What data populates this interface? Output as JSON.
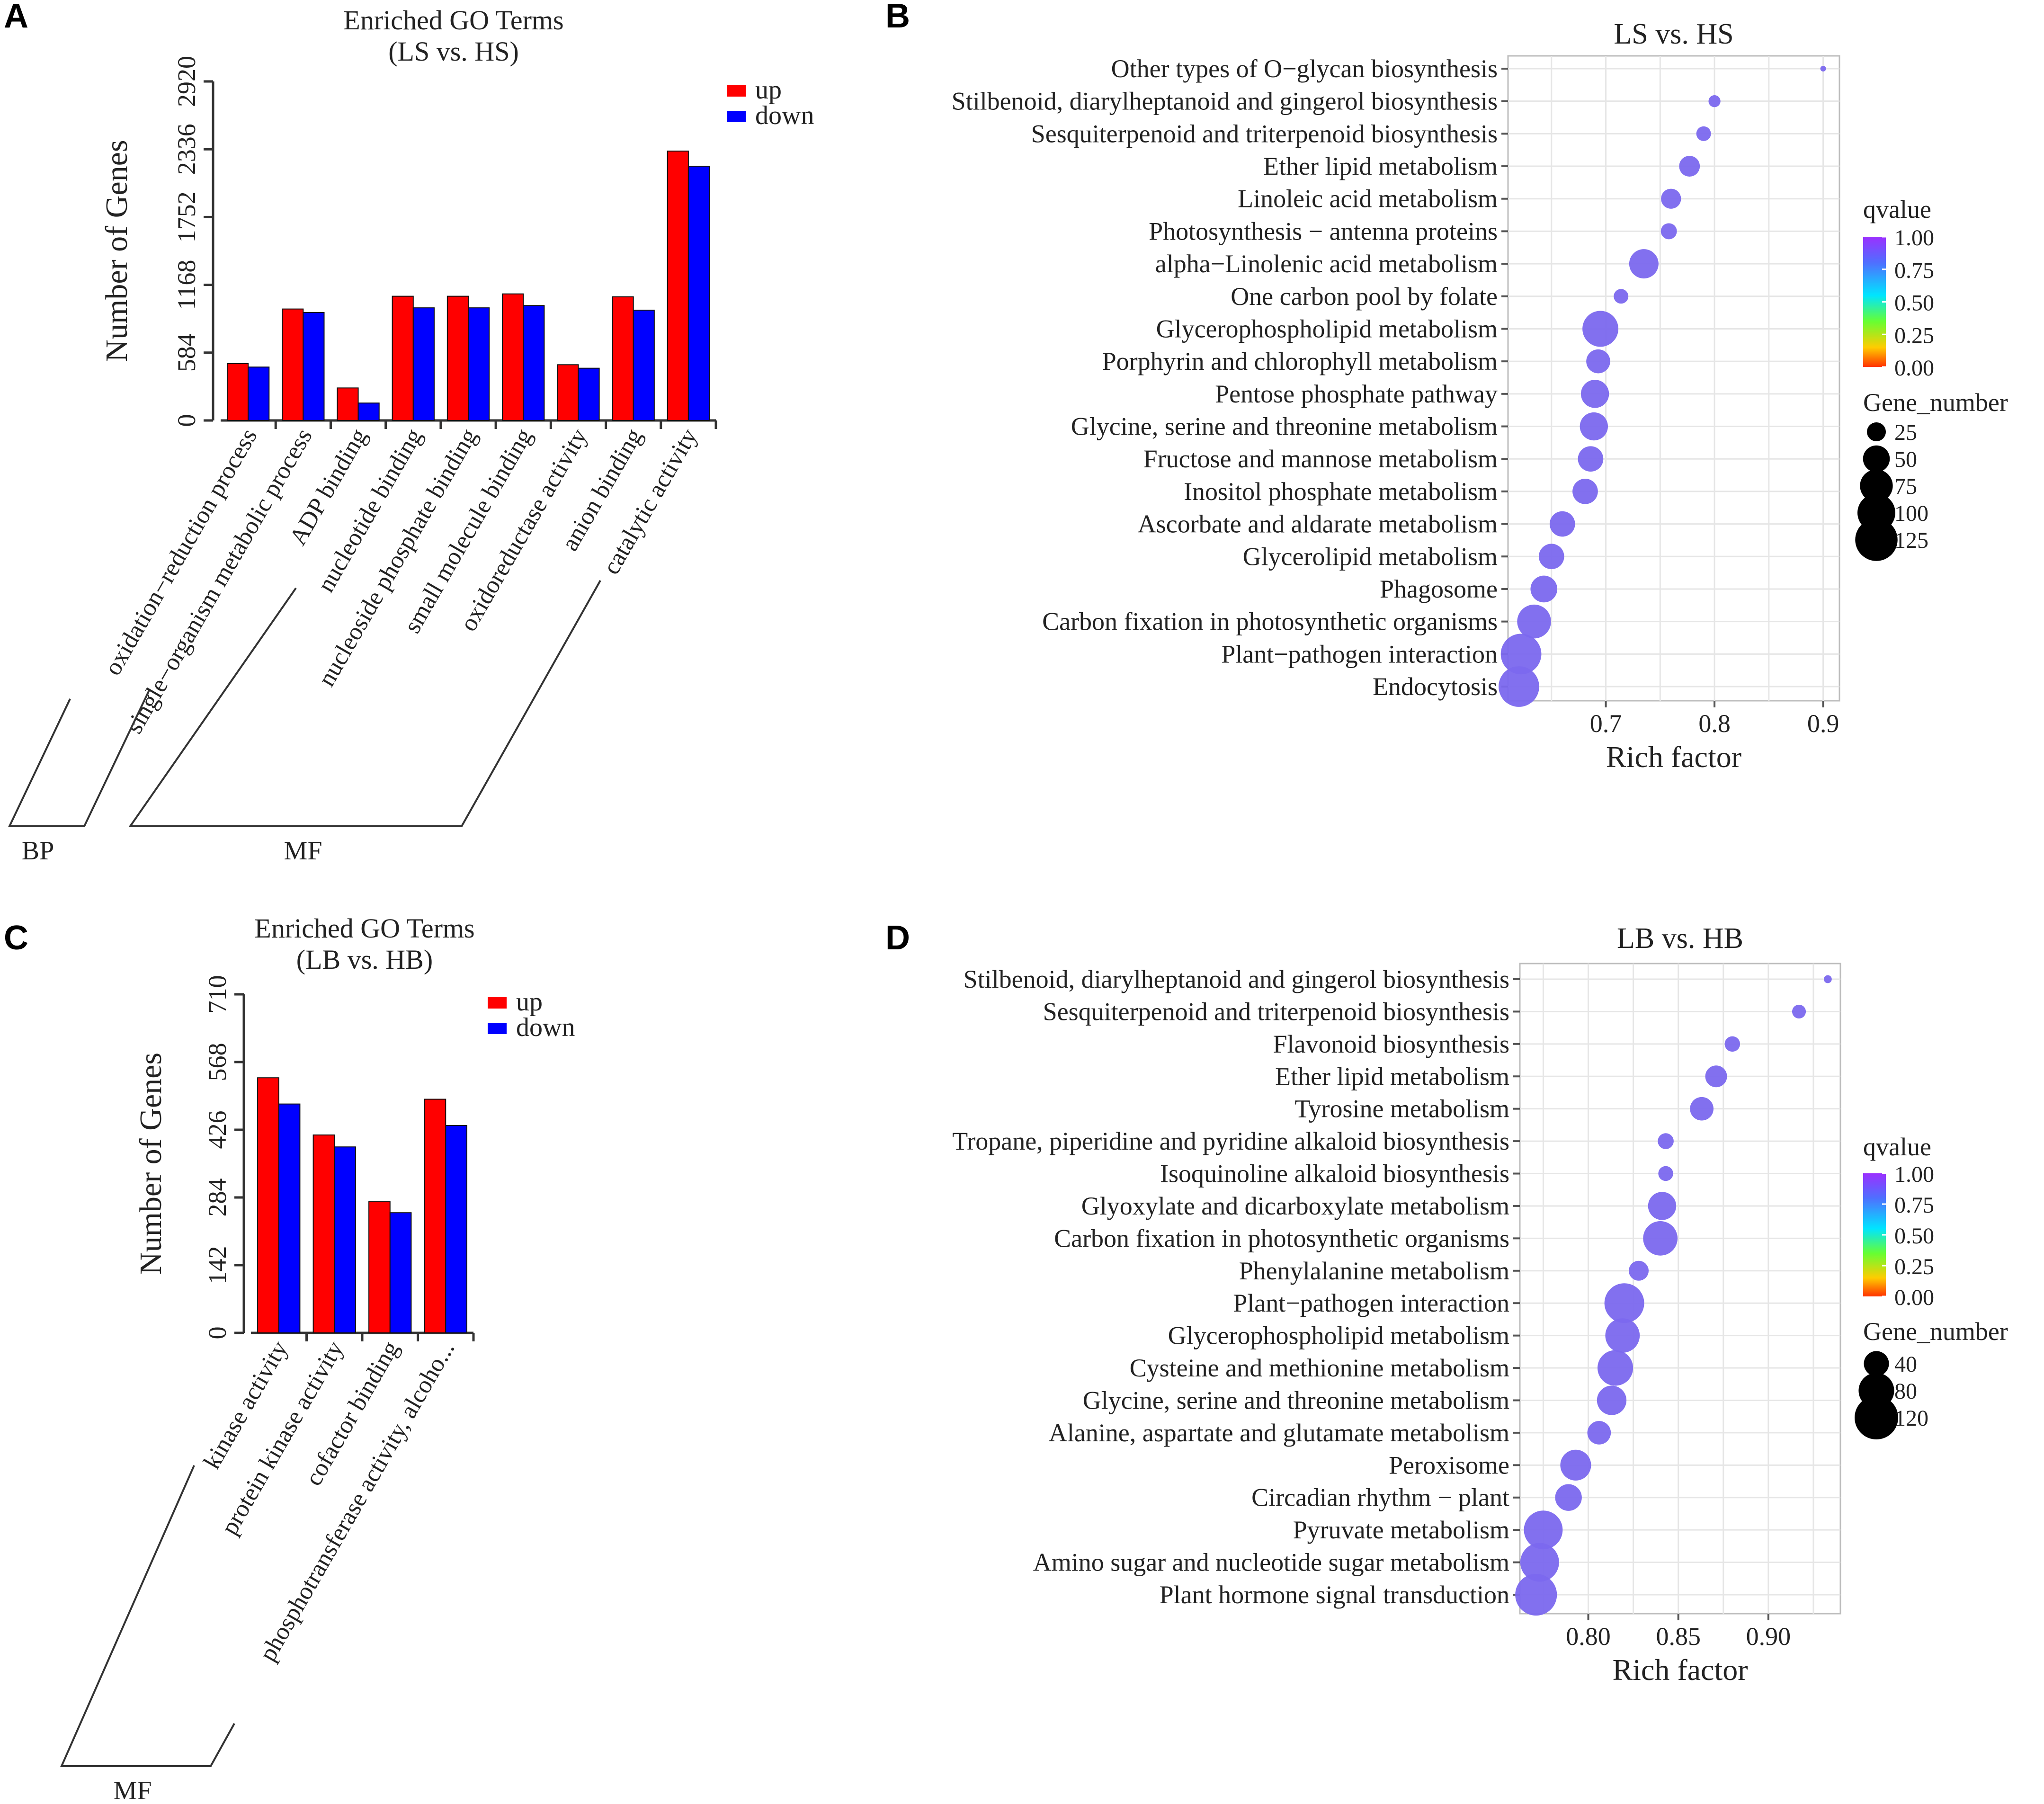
{
  "colors": {
    "up": "#ff0000",
    "down": "#0000ff",
    "axis": "#333333",
    "grid": "#e6e6e6",
    "dot": "#7b68ee",
    "qvalue_gradient": [
      "#9b30ff",
      "#4f6fff",
      "#00e5ff",
      "#66ff33",
      "#ffcc00",
      "#ff3300"
    ]
  },
  "chart_data": [
    {
      "panel": "A",
      "type": "bar",
      "title": "Enriched GO Terms",
      "subtitle": "(LS vs. HS)",
      "ylabel": "Number of Genes",
      "xlabel": "",
      "ylim": [
        0,
        2920
      ],
      "yticks": [
        "0",
        "584",
        "1168",
        "1752",
        "2336",
        "2920"
      ],
      "legend": [
        "up",
        "down"
      ],
      "categories": [
        "oxidation−reduction process",
        "single−organism metabolic process",
        "ADP binding",
        "nucleotide binding",
        "nucleoside phosphate binding",
        "small molecule binding",
        "oxidoreductase activity",
        "anion binding",
        "catalytic activity"
      ],
      "series": [
        {
          "name": "up",
          "values": [
            490,
            960,
            280,
            1070,
            1070,
            1090,
            480,
            1065,
            2320
          ]
        },
        {
          "name": "down",
          "values": [
            460,
            930,
            150,
            970,
            970,
            990,
            450,
            950,
            2190
          ]
        }
      ],
      "groups": [
        {
          "name": "BP",
          "range": [
            0,
            1
          ]
        },
        {
          "name": "MF",
          "range": [
            2,
            8
          ]
        }
      ]
    },
    {
      "panel": "B",
      "type": "scatter",
      "title": "LS vs. HS",
      "xlabel": "Rich factor",
      "ylabel": "",
      "xlim": [
        0.61,
        0.915
      ],
      "xticks": [
        "0.7",
        "0.8",
        "0.9"
      ],
      "color_legend_title": "qvalue",
      "color_ticks": [
        "1.00",
        "0.75",
        "0.50",
        "0.25",
        "0.00"
      ],
      "size_legend_title": "Gene_number",
      "size_ticks": [
        "25",
        "50",
        "75",
        "100",
        "125"
      ],
      "points": [
        {
          "term": "Other types of O−glycan biosynthesis",
          "rich_factor": 0.9,
          "gene_number": 2
        },
        {
          "term": "Stilbenoid, diarylheptanoid and gingerol biosynthesis",
          "rich_factor": 0.8,
          "gene_number": 10
        },
        {
          "term": "Sesquiterpenoid and triterpenoid biosynthesis",
          "rich_factor": 0.79,
          "gene_number": 15
        },
        {
          "term": "Ether lipid metabolism",
          "rich_factor": 0.777,
          "gene_number": 30
        },
        {
          "term": "Linoleic acid metabolism",
          "rich_factor": 0.76,
          "gene_number": 28
        },
        {
          "term": "Photosynthesis − antenna proteins",
          "rich_factor": 0.758,
          "gene_number": 18
        },
        {
          "term": "alpha−Linolenic acid metabolism",
          "rich_factor": 0.735,
          "gene_number": 60
        },
        {
          "term": "One carbon pool by folate",
          "rich_factor": 0.714,
          "gene_number": 15
        },
        {
          "term": "Glycerophospholipid metabolism",
          "rich_factor": 0.695,
          "gene_number": 90
        },
        {
          "term": "Porphyrin and chlorophyll metabolism",
          "rich_factor": 0.693,
          "gene_number": 40
        },
        {
          "term": "Pentose phosphate pathway",
          "rich_factor": 0.69,
          "gene_number": 55
        },
        {
          "term": "Glycine, serine and threonine metabolism",
          "rich_factor": 0.689,
          "gene_number": 55
        },
        {
          "term": "Fructose and mannose metabolism",
          "rich_factor": 0.686,
          "gene_number": 45
        },
        {
          "term": "Inositol phosphate metabolism",
          "rich_factor": 0.681,
          "gene_number": 45
        },
        {
          "term": "Ascorbate and aldarate metabolism",
          "rich_factor": 0.66,
          "gene_number": 45
        },
        {
          "term": "Glycerolipid metabolism",
          "rich_factor": 0.65,
          "gene_number": 45
        },
        {
          "term": "Phagosome",
          "rich_factor": 0.643,
          "gene_number": 50
        },
        {
          "term": "Carbon fixation in photosynthetic organisms",
          "rich_factor": 0.634,
          "gene_number": 80
        },
        {
          "term": "Plant−pathogen interaction",
          "rich_factor": 0.622,
          "gene_number": 115
        },
        {
          "term": "Endocytosis",
          "rich_factor": 0.62,
          "gene_number": 115
        }
      ]
    },
    {
      "panel": "C",
      "type": "bar",
      "title": "Enriched GO Terms",
      "subtitle": "(LB vs. HB)",
      "ylabel": "Number of Genes",
      "xlabel": "",
      "ylim": [
        0,
        710
      ],
      "yticks": [
        "0",
        "142",
        "284",
        "426",
        "568",
        "710"
      ],
      "legend": [
        "up",
        "down"
      ],
      "categories": [
        "kinase activity",
        "protein kinase activity",
        "cofactor binding",
        "phosphotransferase activity, alcoho..."
      ],
      "series": [
        {
          "name": "up",
          "values": [
            535,
            415,
            275,
            490
          ]
        },
        {
          "name": "down",
          "values": [
            480,
            390,
            252,
            435
          ]
        }
      ],
      "groups": [
        {
          "name": "MF",
          "range": [
            0,
            3
          ]
        }
      ]
    },
    {
      "panel": "D",
      "type": "scatter",
      "title": "LB vs. HB",
      "xlabel": "Rich factor",
      "ylabel": "",
      "xlim": [
        0.762,
        0.94
      ],
      "xticks": [
        "0.80",
        "0.85",
        "0.90"
      ],
      "color_legend_title": "qvalue",
      "color_ticks": [
        "1.00",
        "0.75",
        "0.50",
        "0.25",
        "0.00"
      ],
      "size_legend_title": "Gene_number",
      "size_ticks": [
        "40",
        "80",
        "120"
      ],
      "points": [
        {
          "term": "Stilbenoid, diarylheptanoid and gingerol biosynthesis",
          "rich_factor": 0.933,
          "gene_number": 4
        },
        {
          "term": "Sesquiterpenoid and triterpenoid biosynthesis",
          "rich_factor": 0.917,
          "gene_number": 12
        },
        {
          "term": "Flavonoid biosynthesis",
          "rich_factor": 0.88,
          "gene_number": 15
        },
        {
          "term": "Ether lipid metabolism",
          "rich_factor": 0.871,
          "gene_number": 30
        },
        {
          "term": "Tyrosine metabolism",
          "rich_factor": 0.863,
          "gene_number": 35
        },
        {
          "term": "Tropane, piperidine and pyridine alkaloid biosynthesis",
          "rich_factor": 0.843,
          "gene_number": 16
        },
        {
          "term": "Isoquinoline alkaloid biosynthesis",
          "rich_factor": 0.843,
          "gene_number": 14
        },
        {
          "term": "Glyoxylate and dicarboxylate metabolism",
          "rich_factor": 0.841,
          "gene_number": 50
        },
        {
          "term": "Carbon fixation in photosynthetic organisms",
          "rich_factor": 0.84,
          "gene_number": 75
        },
        {
          "term": "Phenylalanine metabolism",
          "rich_factor": 0.828,
          "gene_number": 25
        },
        {
          "term": "Plant−pathogen interaction",
          "rich_factor": 0.82,
          "gene_number": 100
        },
        {
          "term": "Glycerophospholipid metabolism",
          "rich_factor": 0.819,
          "gene_number": 75
        },
        {
          "term": "Cysteine and methionine metabolism",
          "rich_factor": 0.815,
          "gene_number": 80
        },
        {
          "term": "Glycine, serine and threonine metabolism",
          "rich_factor": 0.813,
          "gene_number": 55
        },
        {
          "term": "Alanine, aspartate and glutamate metabolism",
          "rich_factor": 0.806,
          "gene_number": 35
        },
        {
          "term": "Peroxisome",
          "rich_factor": 0.793,
          "gene_number": 60
        },
        {
          "term": "Circadian rhythm − plant",
          "rich_factor": 0.789,
          "gene_number": 45
        },
        {
          "term": "Pyruvate metabolism",
          "rich_factor": 0.775,
          "gene_number": 95
        },
        {
          "term": "Amino sugar and nucleotide sugar metabolism",
          "rich_factor": 0.773,
          "gene_number": 95
        },
        {
          "term": "Plant hormone signal transduction",
          "rich_factor": 0.771,
          "gene_number": 110
        }
      ]
    }
  ]
}
